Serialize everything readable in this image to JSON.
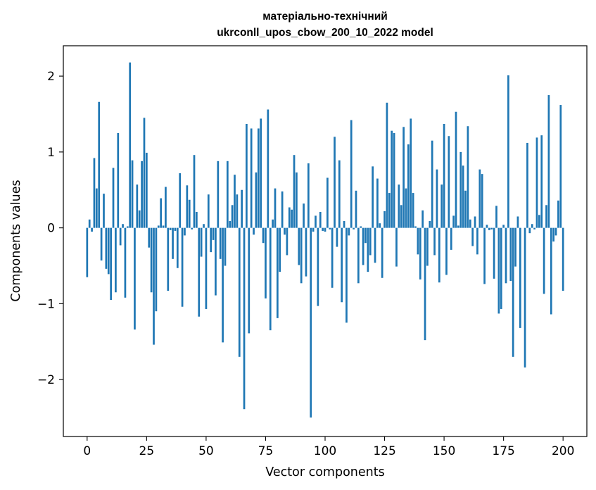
{
  "chart_data": {
    "type": "bar",
    "title_lines": [
      "матеріально-технічний",
      "ukrconll_upos_cbow_200_10_2022 model"
    ],
    "xlabel": "Vector components",
    "ylabel": "Components values",
    "xlim": [
      -10,
      210
    ],
    "ylim": [
      -2.75,
      2.4
    ],
    "xticks": [
      0,
      25,
      50,
      75,
      100,
      125,
      150,
      175,
      200
    ],
    "yticks": [
      -2,
      -1,
      0,
      1,
      2
    ],
    "ytick_labels": [
      "−2",
      "−1",
      "0",
      "1",
      "2"
    ],
    "grid": false,
    "bar_color": "#1f77b4",
    "values": [
      -0.65,
      0.11,
      -0.05,
      0.92,
      0.52,
      1.66,
      -0.43,
      0.45,
      -0.54,
      -0.61,
      -0.95,
      0.79,
      -0.85,
      1.25,
      -0.23,
      0.05,
      -0.92,
      0.02,
      2.18,
      0.89,
      -1.34,
      0.57,
      0.23,
      0.88,
      1.45,
      0.99,
      -0.26,
      -0.85,
      -1.54,
      -1.1,
      0.03,
      0.39,
      0.03,
      0.54,
      -0.83,
      -0.03,
      -0.41,
      -0.04,
      -0.53,
      0.72,
      -1.04,
      -0.1,
      0.56,
      0.37,
      -0.02,
      0.96,
      0.21,
      -1.17,
      -0.38,
      0.05,
      -1.07,
      0.44,
      -0.32,
      -0.16,
      -0.89,
      0.88,
      -0.41,
      -1.51,
      -0.5,
      0.88,
      0.09,
      0.3,
      0.7,
      0.44,
      -1.7,
      0.5,
      -2.39,
      1.37,
      -1.39,
      1.31,
      -0.09,
      0.73,
      1.31,
      1.44,
      -0.2,
      -0.93,
      1.56,
      -1.35,
      0.11,
      0.52,
      -1.19,
      -0.58,
      0.48,
      -0.09,
      -0.36,
      0.27,
      0.24,
      0.96,
      0.73,
      -0.49,
      -0.73,
      0.32,
      -0.64,
      0.85,
      -2.5,
      -0.05,
      0.16,
      -1.03,
      0.21,
      -0.04,
      -0.05,
      0.66,
      -0.02,
      -0.79,
      1.2,
      -0.25,
      0.89,
      -0.98,
      0.09,
      -1.25,
      -0.1,
      1.42,
      -0.02,
      0.49,
      -0.73,
      0.02,
      -0.49,
      -0.2,
      -0.58,
      -0.36,
      0.81,
      -0.46,
      0.65,
      0.06,
      -0.66,
      0.22,
      1.65,
      0.46,
      1.28,
      1.25,
      -0.51,
      0.57,
      0.3,
      1.33,
      0.52,
      1.1,
      1.44,
      0.46,
      0.02,
      -0.35,
      -0.68,
      0.23,
      -1.48,
      -0.5,
      0.09,
      1.15,
      -0.36,
      0.77,
      -0.72,
      0.57,
      1.37,
      -0.62,
      1.21,
      -0.29,
      0.16,
      1.53,
      0.03,
      1.0,
      0.82,
      0.49,
      1.34,
      0.11,
      -0.24,
      0.15,
      -0.35,
      0.77,
      0.71,
      -0.74,
      0.04,
      -0.03,
      -0.02,
      -0.67,
      0.29,
      -1.13,
      -1.07,
      0.04,
      -0.73,
      2.01,
      -0.7,
      -1.7,
      -0.51,
      0.15,
      -1.32,
      0.0,
      -1.84,
      1.12,
      -0.07,
      0.05,
      -0.02,
      1.19,
      0.17,
      1.22,
      -0.87,
      0.3,
      1.75,
      -1.14,
      -0.18,
      -0.1,
      0.36,
      1.62,
      -0.83
    ]
  }
}
